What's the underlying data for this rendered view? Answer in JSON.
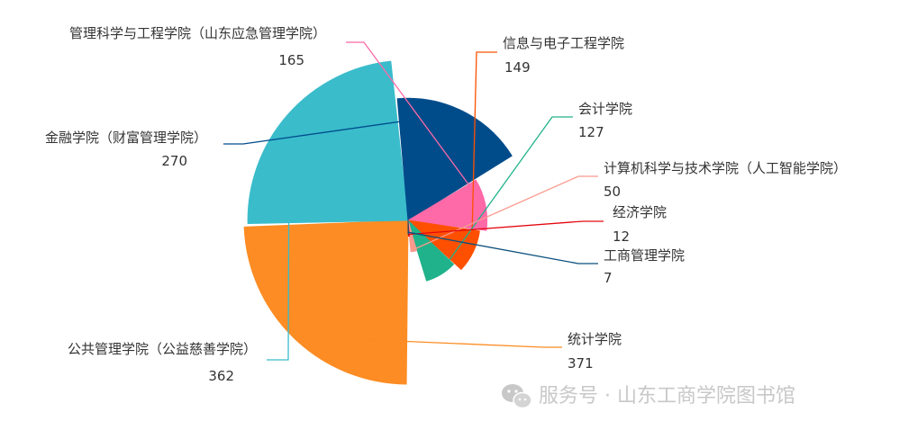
{
  "chart_data": {
    "type": "pie",
    "variant": "rose",
    "categories": [
      "统计学院",
      "公共管理学院（公益慈善学院）",
      "金融学院（财富管理学院）",
      "管理科学与工程学院（山东应急管理学院）",
      "信息与电子工程学院",
      "会计学院",
      "计算机科学与技术学院（人工智能学院）",
      "经济学院",
      "工商管理学院"
    ],
    "values": [
      371,
      362,
      270,
      165,
      149,
      127,
      50,
      12,
      7
    ],
    "colors": [
      "#fc8c23",
      "#3abccb",
      "#004c8b",
      "#fe69a7",
      "#fe5000",
      "#20b28a",
      "#fa9a8e",
      "#e3070f",
      "#0a4f7c"
    ],
    "legend": "none",
    "data_labels": "outside-with-leader-lines"
  },
  "watermark": {
    "icon": "wechat-icon",
    "text": "服务号 · 山东工商学院图书馆"
  }
}
